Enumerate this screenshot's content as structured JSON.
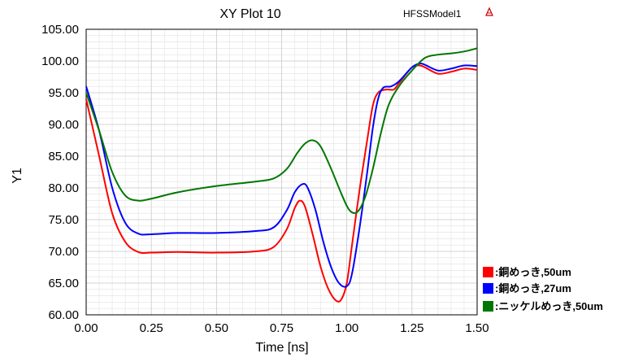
{
  "header": {
    "title": "XY Plot 10",
    "model_name": "HFSSModel1"
  },
  "chart_data": {
    "type": "line",
    "title": "XY Plot 10",
    "xlabel": "Time [ns]",
    "ylabel": "Y1",
    "xlim": [
      0.0,
      1.5
    ],
    "ylim": [
      60.0,
      105.0
    ],
    "xticks": [
      "0.00",
      "0.25",
      "0.50",
      "0.75",
      "1.00",
      "1.25",
      "1.50"
    ],
    "yticks": [
      "60.00",
      "65.00",
      "70.00",
      "75.00",
      "80.00",
      "85.00",
      "90.00",
      "95.00",
      "100.00",
      "105.00"
    ],
    "grid": true,
    "legend_position": "bottom-right",
    "series": [
      {
        "name": "銅めっき,50um",
        "color": "#ff0000",
        "points": [
          [
            0.0,
            94.0
          ],
          [
            0.05,
            85.0
          ],
          [
            0.1,
            76.0
          ],
          [
            0.15,
            71.5
          ],
          [
            0.2,
            69.9
          ],
          [
            0.25,
            69.8
          ],
          [
            0.35,
            69.9
          ],
          [
            0.5,
            69.8
          ],
          [
            0.65,
            70.0
          ],
          [
            0.72,
            70.7
          ],
          [
            0.77,
            73.5
          ],
          [
            0.8,
            76.8
          ],
          [
            0.82,
            78.0
          ],
          [
            0.84,
            77.0
          ],
          [
            0.87,
            72.5
          ],
          [
            0.9,
            67.5
          ],
          [
            0.93,
            64.0
          ],
          [
            0.96,
            62.2
          ],
          [
            0.98,
            62.5
          ],
          [
            1.0,
            65.0
          ],
          [
            1.02,
            71.0
          ],
          [
            1.05,
            80.0
          ],
          [
            1.08,
            88.0
          ],
          [
            1.1,
            93.0
          ],
          [
            1.12,
            95.0
          ],
          [
            1.15,
            95.5
          ],
          [
            1.18,
            95.5
          ],
          [
            1.2,
            96.5
          ],
          [
            1.25,
            99.0
          ],
          [
            1.28,
            99.3
          ],
          [
            1.3,
            99.0
          ],
          [
            1.35,
            98.0
          ],
          [
            1.4,
            98.3
          ],
          [
            1.45,
            98.8
          ],
          [
            1.5,
            98.6
          ]
        ]
      },
      {
        "name": "銅めっき,27um",
        "color": "#0000ff",
        "points": [
          [
            0.0,
            96.0
          ],
          [
            0.05,
            89.0
          ],
          [
            0.1,
            80.0
          ],
          [
            0.15,
            74.5
          ],
          [
            0.2,
            72.8
          ],
          [
            0.25,
            72.7
          ],
          [
            0.35,
            72.9
          ],
          [
            0.5,
            72.9
          ],
          [
            0.65,
            73.2
          ],
          [
            0.72,
            73.8
          ],
          [
            0.77,
            76.5
          ],
          [
            0.8,
            79.3
          ],
          [
            0.83,
            80.6
          ],
          [
            0.85,
            80.0
          ],
          [
            0.88,
            76.5
          ],
          [
            0.91,
            71.5
          ],
          [
            0.94,
            67.5
          ],
          [
            0.97,
            65.0
          ],
          [
            1.0,
            64.5
          ],
          [
            1.02,
            66.5
          ],
          [
            1.05,
            74.0
          ],
          [
            1.08,
            83.0
          ],
          [
            1.1,
            89.5
          ],
          [
            1.12,
            94.0
          ],
          [
            1.14,
            95.8
          ],
          [
            1.17,
            96.0
          ],
          [
            1.2,
            96.8
          ],
          [
            1.25,
            99.0
          ],
          [
            1.28,
            99.6
          ],
          [
            1.3,
            99.4
          ],
          [
            1.35,
            98.5
          ],
          [
            1.4,
            98.8
          ],
          [
            1.45,
            99.3
          ],
          [
            1.5,
            99.2
          ]
        ]
      },
      {
        "name": "ニッケルめっき,50um",
        "color": "#007700",
        "points": [
          [
            0.0,
            95.0
          ],
          [
            0.05,
            89.0
          ],
          [
            0.1,
            82.5
          ],
          [
            0.15,
            78.8
          ],
          [
            0.2,
            78.0
          ],
          [
            0.25,
            78.3
          ],
          [
            0.35,
            79.3
          ],
          [
            0.5,
            80.3
          ],
          [
            0.65,
            81.0
          ],
          [
            0.72,
            81.5
          ],
          [
            0.77,
            83.0
          ],
          [
            0.81,
            85.5
          ],
          [
            0.84,
            87.0
          ],
          [
            0.87,
            87.5
          ],
          [
            0.9,
            86.5
          ],
          [
            0.94,
            83.0
          ],
          [
            0.98,
            79.0
          ],
          [
            1.01,
            76.5
          ],
          [
            1.04,
            76.2
          ],
          [
            1.07,
            78.5
          ],
          [
            1.1,
            83.0
          ],
          [
            1.13,
            88.5
          ],
          [
            1.16,
            93.0
          ],
          [
            1.2,
            96.0
          ],
          [
            1.25,
            98.5
          ],
          [
            1.3,
            100.5
          ],
          [
            1.35,
            101.0
          ],
          [
            1.4,
            101.2
          ],
          [
            1.45,
            101.5
          ],
          [
            1.5,
            102.0
          ]
        ]
      }
    ]
  }
}
